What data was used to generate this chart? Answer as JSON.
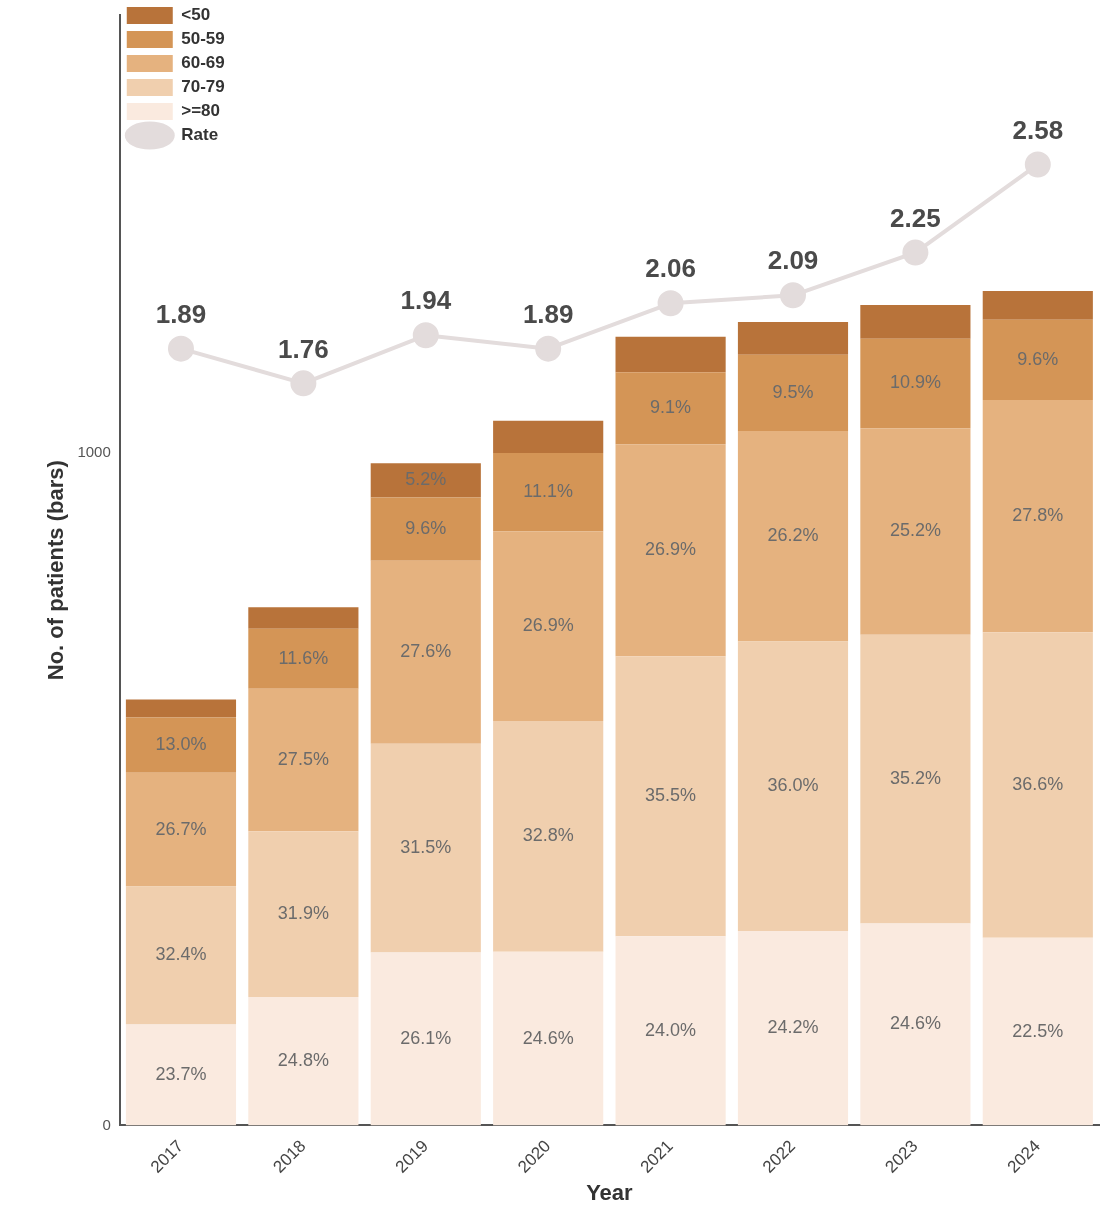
{
  "chart_data": {
    "type": "bar",
    "xlabel": "Year",
    "ylabel": "No. of patients (bars)",
    "categories": [
      "2017",
      "2018",
      "2019",
      "2020",
      "2021",
      "2022",
      "2023",
      "2024"
    ],
    "stacked": true,
    "ylim": [
      0,
      1650
    ],
    "yticks": [
      0,
      1000
    ],
    "y2lim": [
      -1.02,
      3.14
    ],
    "grid": false,
    "legend": "top left",
    "series": [
      {
        "name": ">=80",
        "color": "#faeadf",
        "values": [
          150,
          191,
          257,
          258,
          281,
          289,
          300,
          279
        ]
      },
      {
        "name": "70-79",
        "color": "#f0cfae",
        "values": [
          205,
          246,
          310,
          343,
          416,
          430,
          429,
          454
        ]
      },
      {
        "name": "60-69",
        "color": "#e5b27f",
        "values": [
          169,
          212,
          272,
          282,
          315,
          313,
          307,
          345
        ]
      },
      {
        "name": "50-59",
        "color": "#d49556",
        "values": [
          82,
          89,
          94,
          116,
          107,
          113,
          133,
          119
        ]
      },
      {
        "name": "<50",
        "color": "#b8733a",
        "values": [
          27,
          32,
          51,
          48,
          53,
          49,
          50,
          43
        ]
      },
      {
        "name": "Rate",
        "type": "line",
        "axis": "y2",
        "color": "#e3dcdc",
        "marker": "circle",
        "values": [
          1.89,
          1.76,
          1.94,
          1.89,
          2.06,
          2.09,
          2.25,
          2.58
        ],
        "value_labels": [
          "1.89",
          "1.76",
          "1.94",
          "1.89",
          "2.06",
          "2.09",
          "2.25",
          "2.58"
        ]
      }
    ],
    "annotations": [
      "23.7%",
      "32.4%",
      "26.7%",
      "13.0%",
      "24.8%",
      "31.9%",
      "27.5%",
      "11.6%",
      "26.1%",
      "31.5%",
      "27.6%",
      "9.6%",
      "5.2%",
      "24.6%",
      "32.8%",
      "26.9%",
      "11.1%",
      "24.0%",
      "35.5%",
      "26.9%",
      "9.1%",
      "24.2%",
      "36.0%",
      "26.2%",
      "9.5%",
      "24.6%",
      "35.2%",
      "25.2%",
      "10.9%",
      "22.5%",
      "36.6%",
      "27.8%",
      "9.6%"
    ]
  }
}
